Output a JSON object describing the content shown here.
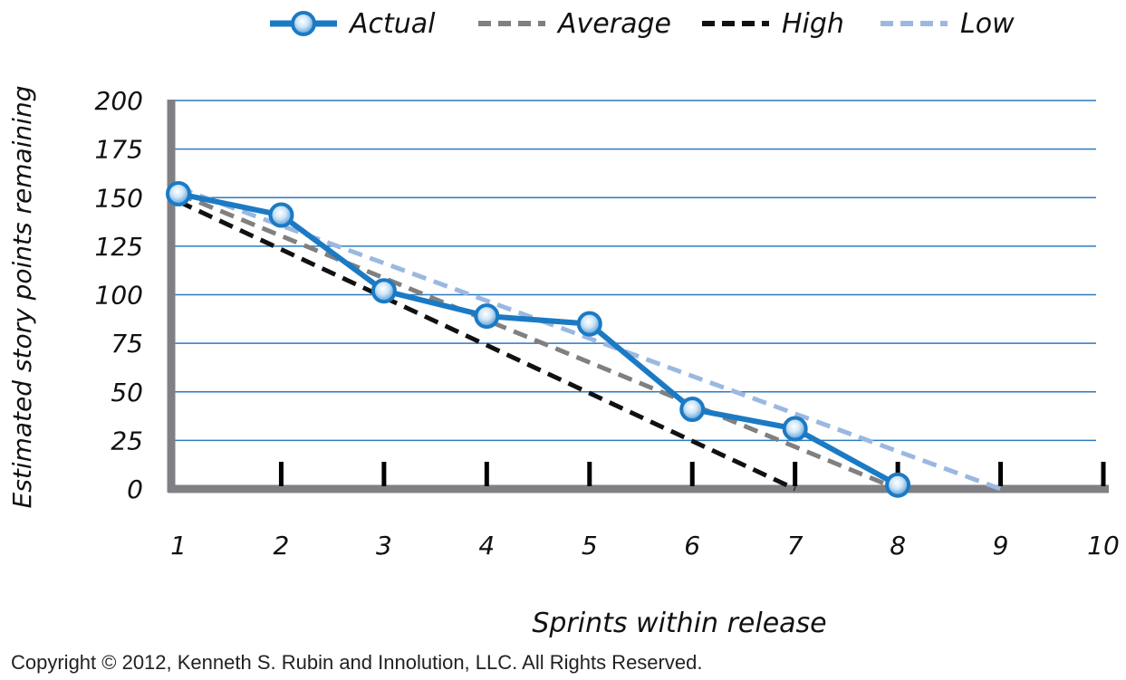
{
  "chart_data": {
    "type": "line",
    "title": "",
    "xlabel": "Sprints within release",
    "ylabel": "Estimated story points remaining",
    "x_ticks": [
      "1",
      "2",
      "3",
      "4",
      "5",
      "6",
      "7",
      "8",
      "9",
      "10"
    ],
    "y_ticks": [
      "0",
      "25",
      "50",
      "75",
      "100",
      "125",
      "150",
      "175",
      "200"
    ],
    "xlim": [
      1,
      10
    ],
    "ylim": [
      0,
      200
    ],
    "grid": true,
    "legend_position": "top",
    "series": [
      {
        "name": "Actual",
        "style": "solid-markers",
        "color": "#1b7ac4",
        "x": [
          1,
          2,
          3,
          4,
          5,
          6,
          7,
          8
        ],
        "y": [
          152,
          141,
          102,
          89,
          85,
          41,
          31,
          2
        ]
      },
      {
        "name": "Average",
        "style": "dashed",
        "color": "#808080",
        "x": [
          1,
          8
        ],
        "y": [
          152,
          0
        ]
      },
      {
        "name": "High",
        "style": "dashed",
        "color": "#111111",
        "x": [
          1,
          7
        ],
        "y": [
          148,
          0
        ]
      },
      {
        "name": "Low",
        "style": "dashed",
        "color": "#9bb8e0",
        "x": [
          1,
          9
        ],
        "y": [
          155,
          0
        ]
      }
    ]
  },
  "copyright": "Copyright © 2012, Kenneth S. Rubin and Innolution, LLC. All Rights Reserved."
}
